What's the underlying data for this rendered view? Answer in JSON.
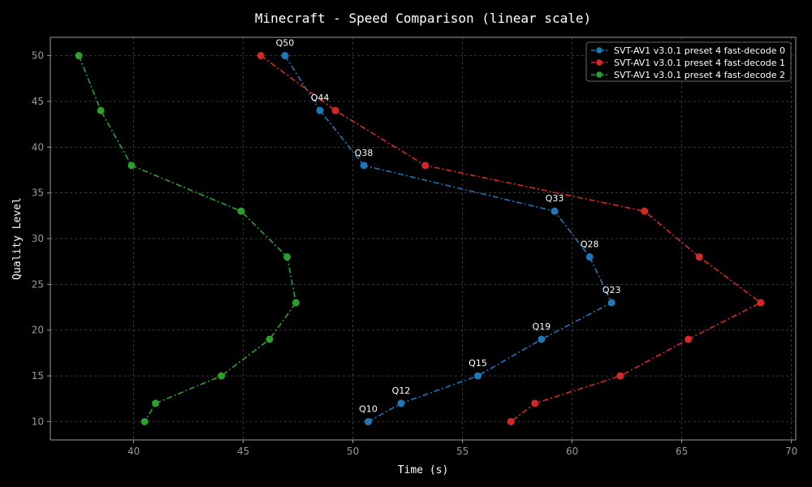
{
  "chart_data": {
    "type": "line",
    "title": "Minecraft - Speed Comparison (linear scale)",
    "xlabel": "Time (s)",
    "ylabel": "Quality Level",
    "xlim": [
      36.2,
      70.2
    ],
    "ylim": [
      8,
      52
    ],
    "xticks": [
      40,
      45,
      50,
      55,
      60,
      65,
      70
    ],
    "yticks": [
      10,
      15,
      20,
      25,
      30,
      35,
      40,
      45,
      50
    ],
    "grid": true,
    "legend_position": "top-right",
    "series": [
      {
        "name": "SVT-AV1 v3.0.1 preset 4 fast-decode 0",
        "color": "#1f77b4",
        "points": [
          {
            "x": 46.9,
            "y": 50,
            "label": "Q50"
          },
          {
            "x": 48.5,
            "y": 44,
            "label": "Q44"
          },
          {
            "x": 50.5,
            "y": 38,
            "label": "Q38"
          },
          {
            "x": 59.2,
            "y": 33,
            "label": "Q33"
          },
          {
            "x": 60.8,
            "y": 28,
            "label": "Q28"
          },
          {
            "x": 61.8,
            "y": 23,
            "label": "Q23"
          },
          {
            "x": 58.6,
            "y": 19,
            "label": "Q19"
          },
          {
            "x": 55.7,
            "y": 15,
            "label": "Q15"
          },
          {
            "x": 52.2,
            "y": 12,
            "label": "Q12"
          },
          {
            "x": 50.7,
            "y": 10,
            "label": "Q10"
          }
        ]
      },
      {
        "name": "SVT-AV1 v3.0.1 preset 4 fast-decode 1",
        "color": "#d62728",
        "points": [
          {
            "x": 45.8,
            "y": 50
          },
          {
            "x": 49.2,
            "y": 44
          },
          {
            "x": 53.3,
            "y": 38
          },
          {
            "x": 63.3,
            "y": 33
          },
          {
            "x": 65.8,
            "y": 28
          },
          {
            "x": 68.6,
            "y": 23
          },
          {
            "x": 65.3,
            "y": 19
          },
          {
            "x": 62.2,
            "y": 15
          },
          {
            "x": 58.3,
            "y": 12
          },
          {
            "x": 57.2,
            "y": 10
          }
        ]
      },
      {
        "name": "SVT-AV1 v3.0.1 preset 4 fast-decode 2",
        "color": "#2ca02c",
        "points": [
          {
            "x": 37.5,
            "y": 50
          },
          {
            "x": 38.5,
            "y": 44
          },
          {
            "x": 39.9,
            "y": 38
          },
          {
            "x": 44.9,
            "y": 33
          },
          {
            "x": 47.0,
            "y": 28
          },
          {
            "x": 47.4,
            "y": 23
          },
          {
            "x": 46.2,
            "y": 19
          },
          {
            "x": 44.0,
            "y": 15
          },
          {
            "x": 41.0,
            "y": 12
          },
          {
            "x": 40.5,
            "y": 10
          }
        ]
      }
    ]
  }
}
